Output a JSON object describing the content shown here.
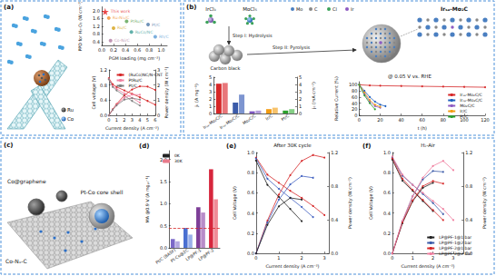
{
  "figure": {
    "panel_labels": [
      "(a)",
      "(b)",
      "(c)",
      "(d)",
      "(e)",
      "(f)"
    ],
    "schematic_a": {
      "legend": [
        "Ru",
        "Co"
      ]
    },
    "schematic_b": {
      "reagents": [
        "IrCl₃",
        "MoCl₅"
      ],
      "steps": [
        "Step I: Hydrolysis",
        "Step II: Pyrolysis"
      ],
      "support": "Carbon black",
      "product": "Irₛₐ-Mo₂C",
      "legend": [
        "Mo",
        "C",
        "Cl",
        "Ir"
      ]
    },
    "schematic_c": {
      "labels": [
        "Co@graphene",
        "Co-Nₓ-C",
        "Pt-Co core shell"
      ]
    }
  },
  "chart_data": [
    {
      "type": "scatter",
      "x_label": "PGM loading (mg cm⁻²)",
      "y_label": "PPD for H₂-O₂ (W cm⁻²)",
      "xlim": [
        0,
        1.1
      ],
      "xticks": [
        {
          "value": 0,
          "label": "0.0"
        },
        0.2,
        0.4,
        0.6,
        0.8,
        {
          "value": 1,
          "label": "1.0"
        }
      ],
      "ylim": [
        0.2,
        2.2
      ],
      "yticks": [
        0.4,
        0.8,
        1.2,
        1.6,
        {
          "value": 2,
          "label": "2.0"
        }
      ],
      "data_labels": true,
      "series": [
        {
          "name": "This work",
          "color": "#e41a1c",
          "marker": "star",
          "x": [
            0.06
          ],
          "values": [
            1.95
          ]
        },
        {
          "name": "Ru₇Ni₃/C",
          "color": "#f28e2b",
          "marker": "circle",
          "x": [
            0.12
          ],
          "values": [
            1.62
          ]
        },
        {
          "name": "PtRu/C",
          "color": "#59a14f",
          "marker": "circle",
          "x": [
            0.42
          ],
          "values": [
            1.45
          ]
        },
        {
          "name": "Ru/C",
          "color": "#d4a017",
          "marker": "circle",
          "x": [
            0.2
          ],
          "values": [
            1.1
          ]
        },
        {
          "name": "RuCo/NC",
          "color": "#3a9e96",
          "marker": "circle",
          "x": [
            0.5
          ],
          "values": [
            0.9
          ]
        },
        {
          "name": "Pt/C",
          "color": "#4e79a7",
          "marker": "circle",
          "x": [
            0.78
          ],
          "values": [
            1.28
          ]
        },
        {
          "name": "Rh/C",
          "color": "#5b9bd5",
          "marker": "circle",
          "x": [
            0.9
          ],
          "values": [
            0.65
          ]
        },
        {
          "name": "Co-Ni/C",
          "color": "#b07aa1",
          "marker": "circle",
          "x": [
            0.15
          ],
          "values": [
            0.45
          ]
        }
      ]
    },
    {
      "type": "line",
      "x_label": "Current density (A cm⁻²)",
      "y_label": "Cell voltage (V)",
      "y2_label": "Power density (W cm⁻²)",
      "xlim": [
        0,
        6
      ],
      "xticks": [
        0,
        1,
        2,
        3,
        4,
        5,
        6
      ],
      "ylim": [
        0,
        1.2
      ],
      "yticks": [
        {
          "value": 0,
          "label": "0.0"
        },
        0.4,
        0.8,
        1.2
      ],
      "y2lim": [
        0,
        3
      ],
      "y2ticks": [
        0,
        1,
        2,
        3
      ],
      "legend": "upper right",
      "marker": "circle",
      "series": [
        {
          "name": "(RuCo)NC/N-CNT",
          "color": "#d62728",
          "x": [
            0,
            0.5,
            1,
            2,
            3,
            4,
            5,
            6
          ],
          "values": [
            0.98,
            0.82,
            0.75,
            0.66,
            0.57,
            0.48,
            0.38,
            0.28
          ]
        },
        {
          "name": "PtRu/C",
          "color": "#f07fa0",
          "x": [
            0,
            0.5,
            1,
            2,
            3,
            4
          ],
          "values": [
            0.96,
            0.78,
            0.7,
            0.58,
            0.46,
            0.34
          ]
        },
        {
          "name": "Pt/C",
          "color": "#7f7f7f",
          "x": [
            0,
            0.5,
            1,
            2,
            3,
            4
          ],
          "values": [
            0.95,
            0.75,
            0.66,
            0.52,
            0.38,
            0.26
          ]
        },
        {
          "name": "(RuCo)NC/N-CNT",
          "color": "#d62728",
          "axis": "y2",
          "x": [
            0,
            0.5,
            1,
            2,
            3,
            4,
            5,
            6
          ],
          "values": [
            0,
            0.41,
            0.75,
            1.32,
            1.71,
            1.92,
            1.9,
            1.68
          ]
        },
        {
          "name": "PtRu/C",
          "color": "#f07fa0",
          "axis": "y2",
          "x": [
            0,
            0.5,
            1,
            2,
            3,
            4
          ],
          "values": [
            0,
            0.39,
            0.7,
            1.16,
            1.38,
            1.36
          ]
        },
        {
          "name": "Pt/C",
          "color": "#7f7f7f",
          "axis": "y2",
          "x": [
            0,
            0.5,
            1,
            2,
            3,
            4
          ],
          "values": [
            0,
            0.38,
            0.66,
            1.04,
            1.14,
            1.04
          ]
        }
      ]
    },
    {
      "type": "bar",
      "y_label": "jₖ (A mg⁻¹)",
      "y2_label": "j₀ (mA cm⁻²)",
      "categories": [
        "Irₛₐ-Mo₂C/C",
        "Irₙₚ-Mo₂C/C",
        "Mo₂C/C",
        "Ir/C",
        "Pt/C"
      ],
      "ylim": [
        0,
        5
      ],
      "yticks": [
        0,
        1,
        2,
        3,
        4,
        5
      ],
      "y2lim": [
        0,
        5
      ],
      "y2ticks": [
        0,
        1,
        2,
        3,
        4,
        5
      ],
      "series": [
        {
          "colors": [
            "#d62728",
            "#3b5ba9",
            "#7e57c2",
            "#f39c12",
            "#2ca02c"
          ],
          "values": [
            4.1,
            1.5,
            0.3,
            0.6,
            0.4
          ]
        },
        {
          "axis": "y2",
          "colors": [
            "#e8767a",
            "#7d95d0",
            "#b39ddb",
            "#f7c26b",
            "#86cf86"
          ],
          "values": [
            4.2,
            2.6,
            0.4,
            0.8,
            0.6
          ]
        }
      ]
    },
    {
      "type": "line",
      "annotation": "@ 0.05 V vs. RHE",
      "x_label": "t (h)",
      "y_label": "Relative Current (%)",
      "xlim": [
        0,
        120
      ],
      "xticks": [
        0,
        20,
        40,
        60,
        80,
        100,
        120
      ],
      "ylim": [
        0,
        110
      ],
      "yticks": [
        0,
        20,
        40,
        60,
        80,
        100
      ],
      "legend": "lower right",
      "marker": "circle",
      "series": [
        {
          "name": "Irₛₐ-Mo₂C/C",
          "color": "#d62728",
          "x": [
            0,
            10,
            20,
            40,
            60,
            80,
            100,
            120
          ],
          "values": [
            100,
            98,
            97,
            96,
            95,
            94,
            93,
            92
          ]
        },
        {
          "name": "Irₙₚ-Mo₂C/C",
          "color": "#1f5fbf",
          "x": [
            0,
            5,
            10,
            15,
            20,
            25
          ],
          "values": [
            100,
            80,
            60,
            45,
            35,
            30
          ]
        },
        {
          "name": "Mo₂C/C",
          "color": "#8e5bc2",
          "x": [
            0,
            5,
            10,
            15,
            20
          ],
          "values": [
            100,
            70,
            45,
            30,
            25
          ]
        },
        {
          "name": "Ir/C",
          "color": "#f39c12",
          "x": [
            0,
            5,
            10,
            15,
            20
          ],
          "values": [
            100,
            75,
            50,
            35,
            28
          ]
        },
        {
          "name": "Pt/C",
          "color": "#2ca02c",
          "x": [
            0,
            5,
            10,
            15
          ],
          "values": [
            100,
            65,
            40,
            20
          ]
        }
      ]
    },
    {
      "type": "bar",
      "y_label": "MA @0.9 V (A mgₚₜ⁻¹)",
      "categories": [
        "Pt/C (BASF)",
        "Pt-Co@2C",
        "LP@PF-1",
        "LP@PF-2"
      ],
      "ylim": [
        0,
        2.2
      ],
      "yticks": [
        {
          "value": 0,
          "label": "0.0"
        },
        0.5,
        {
          "value": 1,
          "label": "1.0"
        },
        1.5,
        {
          "value": 2,
          "label": "2.0"
        }
      ],
      "legend": "upper left",
      "reference_line": 0.44,
      "series": [
        {
          "name": "0K",
          "color": "#222222",
          "colors": [
            "#7b68c8",
            "#4a6fd1",
            "#7e3f98",
            "#d7263d"
          ],
          "values": [
            0.2,
            0.45,
            0.92,
            1.78
          ]
        },
        {
          "name": "30K",
          "color": "#e87a8a",
          "colors": [
            "#b3a8e0",
            "#9ab0ea",
            "#b88cc9",
            "#f08a96"
          ],
          "values": [
            0.15,
            0.3,
            0.8,
            1.1
          ]
        }
      ]
    },
    {
      "type": "line",
      "annotation": "After 30K cycle",
      "x_label": "Current density (A cm⁻²)",
      "y_label": "Cell Voltage (V)",
      "y2_label": "Power density (W cm⁻²)",
      "xlim": [
        0,
        3.2
      ],
      "xticks": [
        0,
        1,
        2,
        3
      ],
      "ylim": [
        0,
        1
      ],
      "yticks": [
        {
          "value": 0,
          "label": "0.0"
        },
        0.2,
        0.4,
        0.6,
        0.8,
        {
          "value": 1,
          "label": "1.0"
        }
      ],
      "y2lim": [
        0,
        1.2
      ],
      "y2ticks": [
        {
          "value": 0,
          "label": "0.0"
        },
        0.4,
        0.8,
        1.2
      ],
      "marker": "circle",
      "series": [
        {
          "color": "#d62728",
          "x": [
            0,
            0.5,
            1,
            1.5,
            2,
            2.5,
            3
          ],
          "values": [
            0.95,
            0.78,
            0.7,
            0.62,
            0.55,
            0.47,
            0.38
          ]
        },
        {
          "color": "#4060c0",
          "x": [
            0,
            0.5,
            1,
            1.5,
            2,
            2.5
          ],
          "values": [
            0.94,
            0.74,
            0.64,
            0.55,
            0.46,
            0.36
          ]
        },
        {
          "color": "#222222",
          "x": [
            0,
            0.5,
            1,
            1.5,
            2
          ],
          "values": [
            0.92,
            0.68,
            0.56,
            0.44,
            0.32
          ]
        },
        {
          "color": "#d62728",
          "axis": "y2",
          "x": [
            0,
            0.5,
            1,
            1.5,
            2,
            2.5,
            3
          ],
          "values": [
            0,
            0.39,
            0.7,
            0.93,
            1.1,
            1.17,
            1.14
          ]
        },
        {
          "color": "#4060c0",
          "axis": "y2",
          "x": [
            0,
            0.5,
            1,
            1.5,
            2,
            2.5
          ],
          "values": [
            0,
            0.37,
            0.64,
            0.82,
            0.92,
            0.9
          ]
        },
        {
          "color": "#222222",
          "axis": "y2",
          "x": [
            0,
            0.5,
            1,
            1.5,
            2
          ],
          "values": [
            0,
            0.34,
            0.56,
            0.66,
            0.64
          ]
        }
      ]
    },
    {
      "type": "line",
      "annotation": "H₂-Air",
      "x_label": "Current density (A cm⁻²)",
      "y_label": "Cell Voltage (V)",
      "y2_label": "Power density (W cm⁻²)",
      "xlim": [
        0,
        3.5
      ],
      "xticks": [
        0,
        1,
        2,
        3
      ],
      "ylim": [
        0,
        1
      ],
      "yticks": [
        {
          "value": 0,
          "label": "0.0"
        },
        0.2,
        0.4,
        0.6,
        0.8,
        {
          "value": 1,
          "label": "1.0"
        }
      ],
      "y2lim": [
        0,
        1.2
      ],
      "y2ticks": [
        {
          "value": 0,
          "label": "0.0"
        },
        0.4,
        0.8,
        1.2
      ],
      "legend": "lower right",
      "marker": "circle",
      "series": [
        {
          "name": "LP@PF-1@1 bar",
          "color": "#222222",
          "x": [
            0,
            0.5,
            1,
            1.5,
            2
          ],
          "values": [
            0.93,
            0.72,
            0.62,
            0.52,
            0.42
          ]
        },
        {
          "name": "LP@PF-1@2 bar",
          "color": "#3b5ba9",
          "x": [
            0,
            0.5,
            1,
            1.5,
            2,
            2.5
          ],
          "values": [
            0.95,
            0.77,
            0.68,
            0.59,
            0.5,
            0.39
          ]
        },
        {
          "name": "LP@PF-2@1 bar",
          "color": "#d62728",
          "x": [
            0,
            0.5,
            1,
            1.5,
            2,
            2.5
          ],
          "values": [
            0.94,
            0.74,
            0.63,
            0.53,
            0.43,
            0.33
          ]
        },
        {
          "name": "LP@PF-2@2 bar",
          "color": "#f07fa0",
          "x": [
            0,
            0.5,
            1,
            1.5,
            2,
            2.5,
            3
          ],
          "values": [
            0.96,
            0.78,
            0.68,
            0.6,
            0.52,
            0.44,
            0.33
          ]
        },
        {
          "name": "LP@PF-1@1 bar",
          "color": "#222222",
          "axis": "y2",
          "x": [
            0,
            0.5,
            1,
            1.5,
            2
          ],
          "values": [
            0,
            0.36,
            0.62,
            0.78,
            0.84
          ]
        },
        {
          "name": "LP@PF-1@2 bar",
          "color": "#3b5ba9",
          "axis": "y2",
          "x": [
            0,
            0.5,
            1,
            1.5,
            2,
            2.5
          ],
          "values": [
            0,
            0.38,
            0.68,
            0.88,
            0.98,
            0.97
          ]
        },
        {
          "name": "LP@PF-2@1 bar",
          "color": "#d62728",
          "axis": "y2",
          "x": [
            0,
            0.5,
            1,
            1.5,
            2,
            2.5
          ],
          "values": [
            0,
            0.37,
            0.63,
            0.8,
            0.86,
            0.83
          ]
        },
        {
          "name": "LP@PF-2@2 bar",
          "color": "#f07fa0",
          "axis": "y2",
          "x": [
            0,
            0.5,
            1,
            1.5,
            2,
            2.5,
            3
          ],
          "values": [
            0,
            0.39,
            0.68,
            0.9,
            1.04,
            1.1,
            0.99
          ]
        }
      ]
    }
  ]
}
